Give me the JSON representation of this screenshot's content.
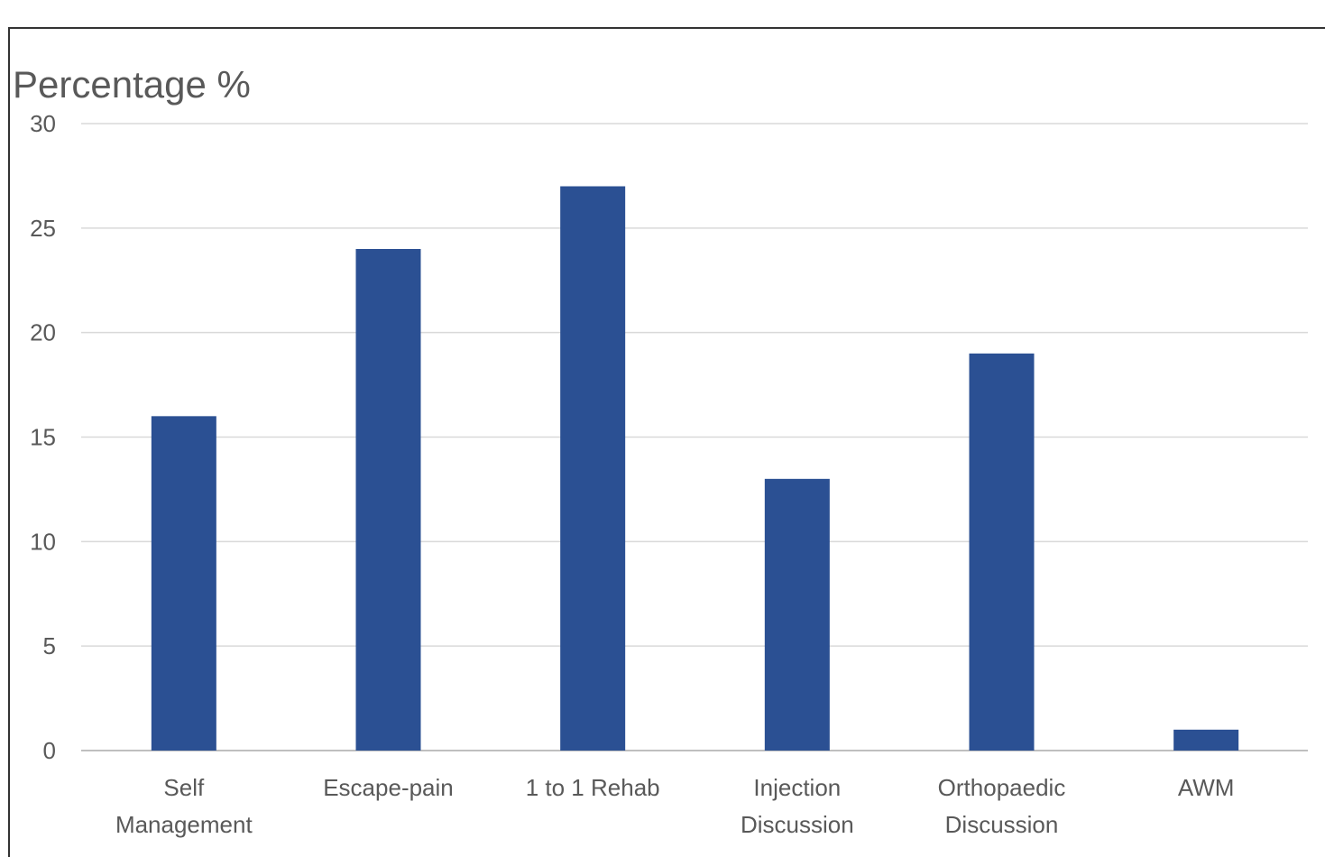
{
  "chart_data": {
    "type": "bar",
    "title": "Percentage %",
    "categories": [
      [
        "Self",
        "Management"
      ],
      [
        "Escape-pain"
      ],
      [
        "1 to 1 Rehab"
      ],
      [
        "Injection",
        "Discussion"
      ],
      [
        "Orthopaedic",
        "Discussion"
      ],
      [
        "AWM"
      ]
    ],
    "values": [
      16,
      24,
      27,
      13,
      19,
      1
    ],
    "ylim": [
      0,
      30
    ],
    "yticks": [
      "0",
      "5",
      "10",
      "15",
      "20",
      "25",
      "30"
    ],
    "xlabel": "",
    "ylabel": "Percentage %",
    "grid": true,
    "legend": "none",
    "colors": {
      "bar": "#2b5093",
      "grid": "#d9d9d9",
      "axis": "#bfbfbf",
      "text": "#595959",
      "border": "#333333"
    }
  }
}
